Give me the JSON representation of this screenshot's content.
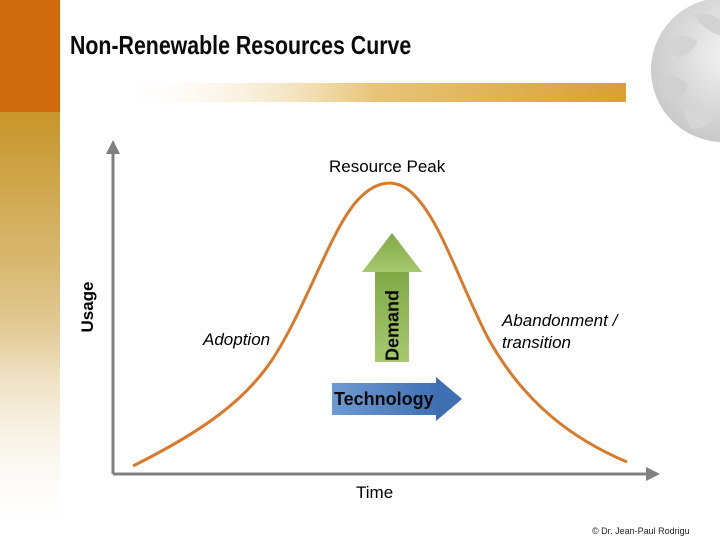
{
  "slide": {
    "title": "Non-Renewable Resources Curve",
    "copyright": "© Dr. Jean-Paul Rodrigu"
  },
  "diagram": {
    "peak_label": "Resource Peak",
    "adoption_label": "Adoption",
    "abandonment_label": "Abandonment / transition",
    "x_axis_label": "Time",
    "y_axis_label": "Usage",
    "demand_arrow_label": "Demand",
    "technology_arrow_label": "Technology"
  },
  "colors": {
    "accent_orange": "#d2691e",
    "left_bar_top": "#cf6a0f",
    "left_bar_gradient": "#c8962a",
    "underline_gold": "#d9a032",
    "curve": "#d97a2b",
    "axis": "#808080",
    "demand_arrow": "#8db356",
    "technology_arrow": "#4f7fc0"
  }
}
